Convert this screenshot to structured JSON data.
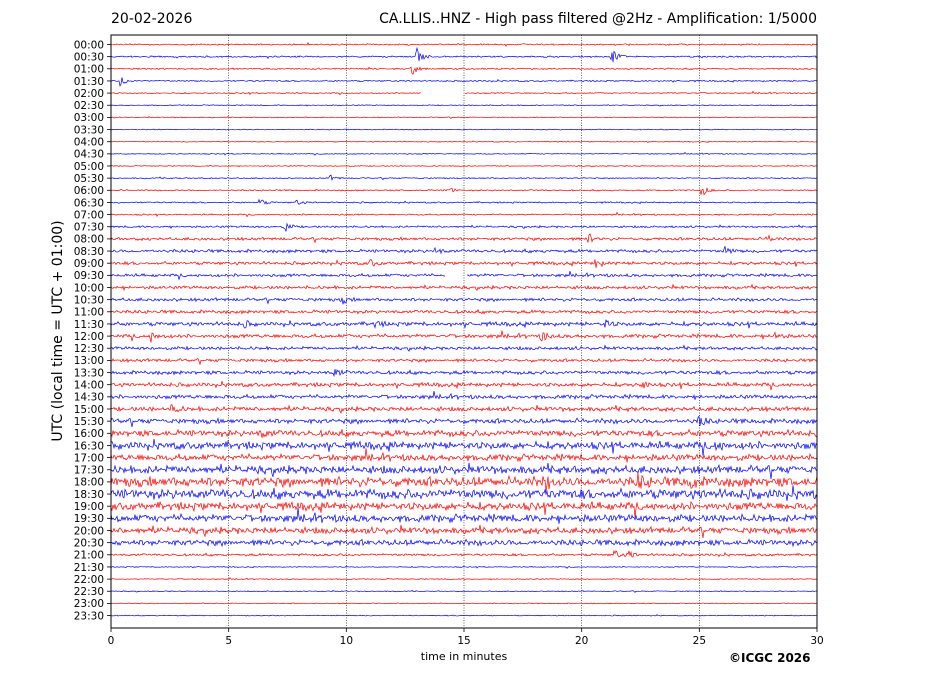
{
  "chart_data": {
    "type": "line",
    "date": "20-02-2026",
    "title": "CA.LLIS..HNZ - High pass filtered @2Hz - Amplification: 1/5000",
    "xlabel": "time in minutes",
    "ylabel": "UTC (local time = UTC + 01:00)",
    "xlim": [
      0,
      30
    ],
    "x_ticks": [
      "0",
      "5",
      "10",
      "15",
      "20",
      "25",
      "30"
    ],
    "x_grid": [
      5,
      10,
      15,
      20,
      25
    ],
    "row_labels": [
      "00:00",
      "00:30",
      "01:00",
      "01:30",
      "02:00",
      "02:30",
      "03:00",
      "03:30",
      "04:00",
      "04:30",
      "05:00",
      "05:30",
      "06:00",
      "06:30",
      "07:00",
      "07:30",
      "08:00",
      "08:30",
      "09:00",
      "09:30",
      "10:00",
      "10:30",
      "11:00",
      "11:30",
      "12:00",
      "12:30",
      "13:00",
      "13:30",
      "14:00",
      "14:30",
      "15:00",
      "15:30",
      "16:00",
      "16:30",
      "17:00",
      "17:30",
      "18:00",
      "18:30",
      "19:00",
      "19:30",
      "20:00",
      "20:30",
      "21:00",
      "21:30",
      "22:00",
      "22:30",
      "23:00",
      "23:30"
    ],
    "trace_colors": [
      "#ff0000",
      "#0000ff"
    ],
    "noise_level": [
      0.6,
      0.6,
      0.6,
      0.6,
      0.5,
      0.4,
      0.4,
      0.4,
      0.4,
      0.4,
      0.4,
      0.5,
      0.6,
      0.6,
      0.6,
      0.8,
      1.2,
      1.3,
      1.3,
      1.2,
      1.3,
      1.3,
      1.4,
      1.6,
      1.5,
      1.3,
      1.3,
      1.5,
      1.6,
      1.6,
      1.8,
      2.0,
      2.6,
      3.0,
      2.6,
      3.2,
      4.0,
      4.0,
      3.2,
      3.0,
      2.6,
      2.4,
      1.0,
      0.4,
      0.4,
      0.4,
      0.4,
      0.4
    ],
    "events": [
      {
        "row": 1,
        "minute": 13.0,
        "amplitude": 9
      },
      {
        "row": 1,
        "minute": 21.3,
        "amplitude": 9
      },
      {
        "row": 2,
        "minute": 12.8,
        "amplitude": 7
      },
      {
        "row": 3,
        "minute": 0.4,
        "amplitude": 6
      },
      {
        "row": 11,
        "minute": 9.3,
        "amplitude": 3
      },
      {
        "row": 12,
        "minute": 14.3,
        "amplitude": 4
      },
      {
        "row": 12,
        "minute": 25.1,
        "amplitude": 7
      },
      {
        "row": 13,
        "minute": 6.3,
        "amplitude": 4
      },
      {
        "row": 13,
        "minute": 7.9,
        "amplitude": 3
      },
      {
        "row": 15,
        "minute": 7.4,
        "amplitude": 5
      },
      {
        "row": 16,
        "minute": 20.3,
        "amplitude": 5
      },
      {
        "row": 16,
        "minute": 27.9,
        "amplitude": 4
      },
      {
        "row": 17,
        "minute": 13.8,
        "amplitude": 4
      },
      {
        "row": 17,
        "minute": 26.1,
        "amplitude": 5
      },
      {
        "row": 18,
        "minute": 11.0,
        "amplitude": 4
      },
      {
        "row": 18,
        "minute": 20.6,
        "amplitude": 5
      },
      {
        "row": 21,
        "minute": 9.8,
        "amplitude": 4
      },
      {
        "row": 23,
        "minute": 5.6,
        "amplitude": 4
      },
      {
        "row": 23,
        "minute": 11.2,
        "amplitude": 4
      },
      {
        "row": 23,
        "minute": 21.0,
        "amplitude": 4
      },
      {
        "row": 24,
        "minute": 1.7,
        "amplitude": 5
      },
      {
        "row": 24,
        "minute": 18.3,
        "amplitude": 6
      },
      {
        "row": 24,
        "minute": 28.2,
        "amplitude": 4
      },
      {
        "row": 27,
        "minute": 9.5,
        "amplitude": 5
      },
      {
        "row": 28,
        "minute": 22.6,
        "amplitude": 4
      },
      {
        "row": 30,
        "minute": 2.6,
        "amplitude": 5
      },
      {
        "row": 31,
        "minute": 25.0,
        "amplitude": 6
      },
      {
        "row": 32,
        "minute": 6.4,
        "amplitude": 4
      },
      {
        "row": 33,
        "minute": 25.7,
        "amplitude": 5
      },
      {
        "row": 36,
        "minute": 18.4,
        "amplitude": 8
      },
      {
        "row": 36,
        "minute": 22.4,
        "amplitude": 7
      },
      {
        "row": 36,
        "minute": 24.6,
        "amplitude": 6
      },
      {
        "row": 42,
        "minute": 21.4,
        "amplitude": 5
      },
      {
        "row": 42,
        "minute": 22.0,
        "amplitude": 5
      }
    ],
    "gaps": [
      {
        "row": 4,
        "from": 13.2,
        "to": 15.0
      },
      {
        "row": 19,
        "from": 14.2,
        "to": 15.1
      }
    ],
    "grid": true
  },
  "footer": {
    "copyright": "©ICGC 2026"
  }
}
